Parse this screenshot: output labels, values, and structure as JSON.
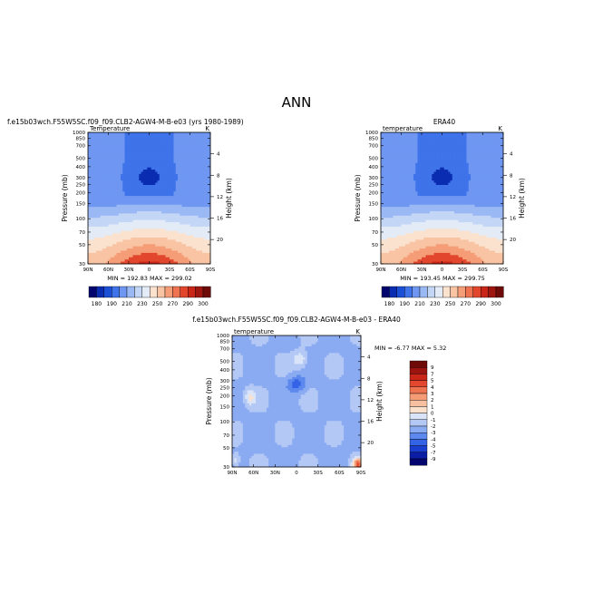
{
  "figure": {
    "main_title": "ANN"
  },
  "colors": {
    "palette": [
      "#02056e",
      "#0a2cb0",
      "#1a4fd6",
      "#3e73ea",
      "#6f97f2",
      "#9ab8f4",
      "#c4d6f6",
      "#e3ebf7",
      "#fbe2cf",
      "#f8c4a4",
      "#f59d77",
      "#ef7351",
      "#e2462d",
      "#c92617",
      "#9f1510",
      "#6e0a08"
    ],
    "diff_palette": [
      "#02056e",
      "#0a1da4",
      "#1a3fd0",
      "#3563e6",
      "#5d89ee",
      "#8aaaf2",
      "#b3c8f5",
      "#d9e4f8",
      "#fbe0cc",
      "#f8c0a0",
      "#f59b75",
      "#ee7350",
      "#e2482e",
      "#c92617",
      "#9c140f",
      "#6e0a08"
    ]
  },
  "chart_data": [
    {
      "type": "contour",
      "name": "model",
      "title_left": "f.e15b03wch.F55W5SC.f09_f09.CLB2-AGW4-M-B-e03 (yrs 1980-1989)",
      "subtitle_left": "Temperature",
      "subtitle_right": "K",
      "ylabel": "Pressure (mb)",
      "ylabel_right": "Height (km)",
      "x_ticks": [
        "90N",
        "60N",
        "30N",
        "0",
        "30S",
        "60S",
        "90S"
      ],
      "x_range": [
        90,
        -90
      ],
      "y_ticks": [
        "30",
        "50",
        "70",
        "100",
        "150",
        "200",
        "250",
        "300",
        "400",
        "500",
        "700",
        "850",
        "1000"
      ],
      "y_range": [
        1000,
        30
      ],
      "log_scale_y": true,
      "height_ticks": [
        "20",
        "16",
        "12",
        "8",
        "4"
      ],
      "stats_text": "MIN = 192.83    MAX = 299.02",
      "min": 192.83,
      "max": 299.02,
      "levels": [
        180,
        190,
        200,
        210,
        220,
        230,
        240,
        250,
        260,
        270,
        280,
        290,
        300
      ],
      "colorbar_labels": [
        "180",
        "190",
        "210",
        "230",
        "250",
        "270",
        "290",
        "300"
      ]
    },
    {
      "type": "contour",
      "name": "obs",
      "title_center": "ERA40",
      "subtitle_left": "temperature",
      "subtitle_right": "K",
      "ylabel": "Pressure (mb)",
      "ylabel_right": "Height (km)",
      "x_ticks": [
        "90N",
        "60N",
        "30N",
        "0",
        "30S",
        "60S",
        "90S"
      ],
      "x_range": [
        90,
        -90
      ],
      "y_ticks": [
        "30",
        "50",
        "70",
        "100",
        "150",
        "200",
        "250",
        "300",
        "400",
        "500",
        "700",
        "850",
        "1000"
      ],
      "y_range": [
        1000,
        30
      ],
      "log_scale_y": true,
      "height_ticks": [
        "20",
        "16",
        "12",
        "8",
        "4"
      ],
      "stats_text": "MIN = 193.45    MAX = 299.75",
      "min": 193.45,
      "max": 299.75,
      "levels": [
        180,
        190,
        200,
        210,
        220,
        230,
        240,
        250,
        260,
        270,
        280,
        290,
        300
      ],
      "colorbar_labels": [
        "180",
        "190",
        "210",
        "230",
        "250",
        "270",
        "290",
        "300"
      ]
    },
    {
      "type": "contour",
      "name": "difference",
      "title_center": "f.e15b03wch.F55W5SC.f09_f09.CLB2-AGW4-M-B-e03 - ERA40",
      "subtitle_left": "temperature",
      "subtitle_right": "K",
      "ylabel": "Pressure (mb)",
      "ylabel_right": "Height (km)",
      "x_ticks": [
        "90N",
        "60N",
        "30N",
        "0",
        "30S",
        "60S",
        "90S"
      ],
      "x_range": [
        90,
        -90
      ],
      "y_ticks": [
        "30",
        "50",
        "70",
        "100",
        "150",
        "200",
        "250",
        "300",
        "400",
        "500",
        "700",
        "850",
        "1000"
      ],
      "y_range": [
        1000,
        30
      ],
      "log_scale_y": true,
      "height_ticks": [
        "20",
        "16",
        "12",
        "8",
        "4"
      ],
      "stats_text": "MIN =  -6.77   MAX =   5.32",
      "min": -6.77,
      "max": 5.32,
      "levels": [
        -9,
        -7,
        -5,
        -4,
        -3,
        -2,
        -1,
        0,
        1,
        2,
        3,
        4,
        5,
        7,
        9
      ],
      "colorbar_labels": [
        "9",
        "7",
        "5",
        "4",
        "3",
        "2",
        "1",
        "0",
        "-1",
        "-2",
        "-3",
        "-4",
        "-5",
        "-7",
        "-9"
      ]
    }
  ]
}
